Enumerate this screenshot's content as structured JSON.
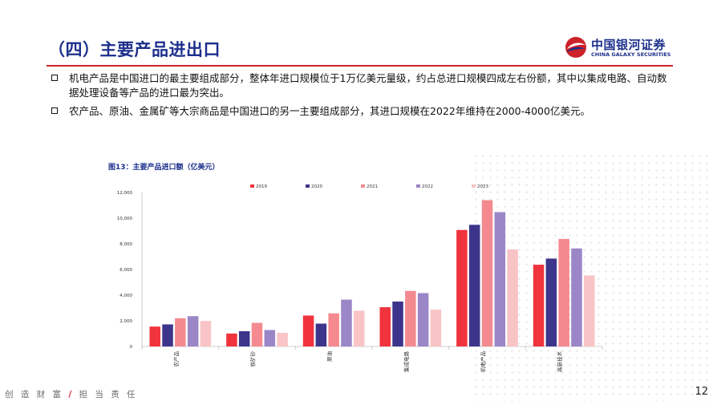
{
  "header": {
    "title": "（四）主要产品进出口",
    "logo": {
      "cn": "中国银河证券",
      "en": "CHINA GALAXY SECURITIES"
    }
  },
  "bullets": [
    "机电产品是中国进口的最主要组成部分，整体年进口规模位于1万亿美元量级，约占总进口规模四成左右份额，其中以集成电路、自动数据处理设备等产品的进口最为突出。",
    "农产品、原油、金属矿等大宗商品是中国进口的另一主要组成部分，其进口规模在2022年维持在2000-4000亿美元。"
  ],
  "figure_title": "图13：主要产品进口额（亿美元）",
  "chart_data": {
    "type": "bar",
    "categories": [
      "农产品",
      "铁矿砂",
      "原油",
      "集成电路",
      "机电产品",
      "高新技术"
    ],
    "series": [
      {
        "name": "2019",
        "color": "#f0333d",
        "values": [
          1550,
          1010,
          2410,
          3060,
          9080,
          6370
        ]
      },
      {
        "name": "2020",
        "color": "#3d348b",
        "values": [
          1720,
          1190,
          1780,
          3500,
          9480,
          6850
        ]
      },
      {
        "name": "2021",
        "color": "#f48a8f",
        "values": [
          2200,
          1840,
          2580,
          4330,
          11400,
          8380
        ]
      },
      {
        "name": "2022",
        "color": "#9b86c7",
        "values": [
          2360,
          1280,
          3650,
          4160,
          10470,
          7640
        ]
      },
      {
        "name": "2023",
        "color": "#f8c4c6",
        "values": [
          1990,
          1060,
          2780,
          2870,
          7560,
          5540
        ]
      }
    ],
    "ylim": [
      0,
      12000
    ],
    "yticks": [
      "0",
      "2,000",
      "4,000",
      "6,000",
      "8,000",
      "10,000",
      "12,000"
    ],
    "legend_position": "top"
  },
  "footer": {
    "slogan_left": "创 造 财 富",
    "slash": "/",
    "slogan_right": "担 当 责 任",
    "page_number": "12"
  }
}
